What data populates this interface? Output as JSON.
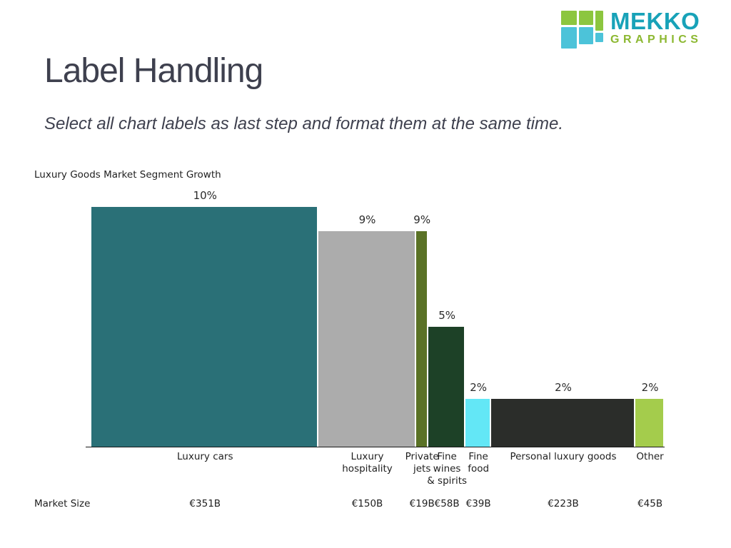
{
  "slide": {
    "title": "Label Handling",
    "subtitle": "Select all chart labels as last step and format them at the same time."
  },
  "logo": {
    "name_line1": "MEKKO",
    "name_line2": "GRAPHICS",
    "colors": {
      "text_teal": "#18A2B8",
      "text_green": "#8CB831",
      "square_teal": "#4CC3D9",
      "square_green": "#8CC63F"
    }
  },
  "chart_data": {
    "type": "bar",
    "variant": "variable-width bar mekko",
    "title": "Luxury Goods Market Segment Growth",
    "categories": [
      "Luxury cars",
      "Luxury hospitality",
      "Private jets",
      "Fine wines & spirits",
      "Fine food",
      "Personal luxury goods",
      "Other"
    ],
    "category_label_lines": [
      [
        "Luxury cars"
      ],
      [
        "Luxury",
        "hospitality"
      ],
      [
        "Private",
        "jets"
      ],
      [
        "Fine",
        "wines",
        "& spirits"
      ],
      [
        "Fine",
        "food"
      ],
      [
        "Personal luxury goods"
      ],
      [
        "Other"
      ]
    ],
    "growth_pct": [
      10,
      9,
      9,
      5,
      2,
      2,
      2
    ],
    "value_labels": [
      "10%",
      "9%",
      "9%",
      "5%",
      "2%",
      "2%",
      "2%"
    ],
    "market_size_billions_eur": [
      351,
      150,
      19,
      58,
      39,
      223,
      45
    ],
    "market_size_labels": [
      "€351B",
      "€150B",
      "€19B",
      "€58B",
      "€39B",
      "€223B",
      "€45B"
    ],
    "bar_colors": [
      "#2A7077",
      "#ACACAC",
      "#5A7226",
      "#1D4127",
      "#63E7F6",
      "#2B2D2A",
      "#A4CC4C"
    ],
    "axis_color": "#1A1A1A",
    "row_label": "Market Size",
    "xlabel": "",
    "ylabel": "",
    "ylim": [
      0,
      10.9
    ],
    "legend": "none",
    "grid": "off",
    "bar_width_proportional_to": "market_size_billions_eur"
  }
}
